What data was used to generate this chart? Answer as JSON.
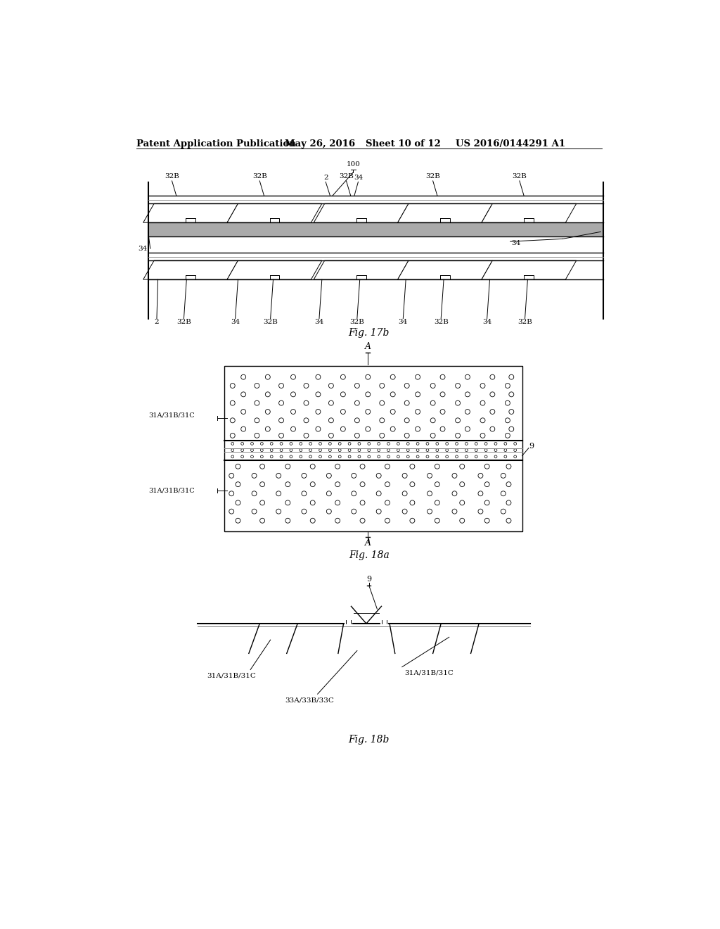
{
  "background_color": "#ffffff",
  "header_text": "Patent Application Publication",
  "header_date": "May 26, 2016",
  "header_sheet": "Sheet 10 of 12",
  "header_patent": "US 2016/0144291 A1",
  "fig17b_label": "Fig. 17b",
  "fig18a_label": "Fig. 18a",
  "fig18b_label": "Fig. 18b",
  "line_color": "#000000",
  "gray_color": "#888888",
  "light_gray": "#cccccc"
}
